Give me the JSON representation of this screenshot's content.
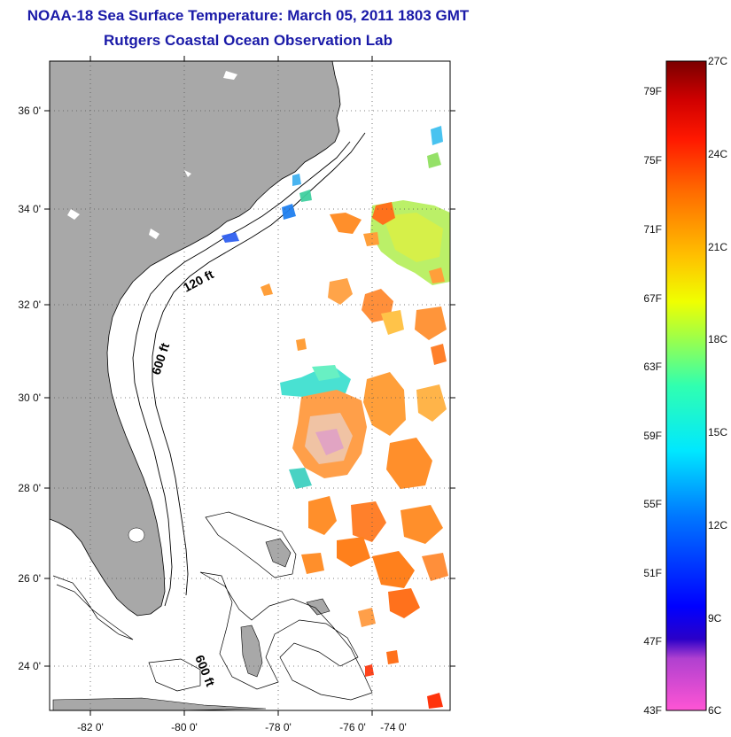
{
  "header": {
    "title": "NOAA-18 Sea Surface Temperature:  March 05, 2011 1803 GMT",
    "subtitle": "Rutgers Coastal Ocean Observation Lab"
  },
  "map": {
    "lat_labels": [
      "36 0'",
      "34 0'",
      "32 0'",
      "30 0'",
      "28 0'",
      "26 0'",
      "24 0'"
    ],
    "lon_labels": [
      "-82 0'",
      "-80 0'",
      "-78 0'",
      "-76 0'",
      "-74 0'"
    ],
    "contour_labels": [
      "120 ft",
      "600 ft",
      "600 ft"
    ],
    "colors": {
      "land": "#a8a8a8",
      "frame": "#000000",
      "grid": "#555555"
    }
  },
  "colorbar": {
    "fahrenheit": [
      "79F",
      "75F",
      "71F",
      "67F",
      "63F",
      "59F",
      "55F",
      "51F",
      "47F",
      "43F"
    ],
    "celsius": [
      "27C",
      "24C",
      "21C",
      "18C",
      "15C",
      "12C",
      "9C",
      "6C"
    ]
  }
}
